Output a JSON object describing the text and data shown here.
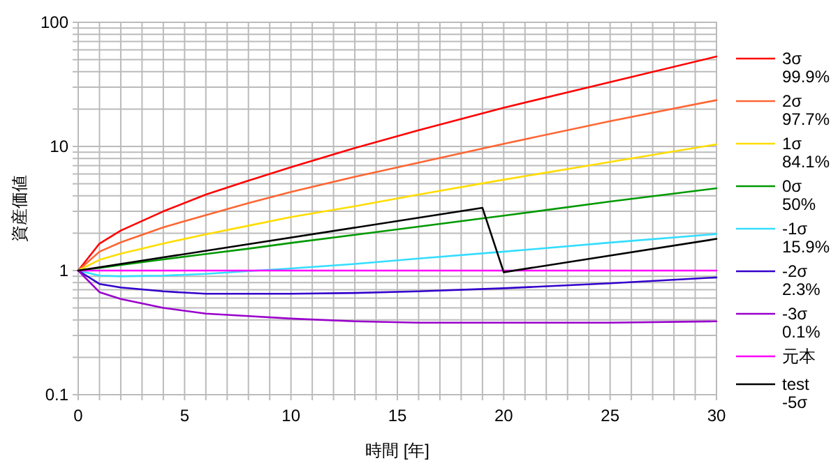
{
  "chart_data": {
    "type": "line",
    "xlabel": "時間 [年]",
    "ylabel": "資産価値",
    "log": "y",
    "grid": true,
    "legend": "right",
    "line_style": "solid",
    "marker": "none",
    "xlim": [
      0,
      30
    ],
    "ylim": [
      0.1,
      100
    ],
    "xticks": [
      0,
      {
        "value": 1,
        "label": null
      },
      {
        "value": 2,
        "label": null
      },
      {
        "value": 3,
        "label": null
      },
      {
        "value": 4,
        "label": null
      },
      5,
      {
        "value": 6,
        "label": null
      },
      {
        "value": 7,
        "label": null
      },
      {
        "value": 8,
        "label": null
      },
      {
        "value": 9,
        "label": null
      },
      10,
      {
        "value": 11,
        "label": null
      },
      {
        "value": 12,
        "label": null
      },
      {
        "value": 13,
        "label": null
      },
      {
        "value": 14,
        "label": null
      },
      15,
      {
        "value": 16,
        "label": null
      },
      {
        "value": 17,
        "label": null
      },
      {
        "value": 18,
        "label": null
      },
      {
        "value": 19,
        "label": null
      },
      20,
      {
        "value": 21,
        "label": null
      },
      {
        "value": 22,
        "label": null
      },
      {
        "value": 23,
        "label": null
      },
      {
        "value": 24,
        "label": null
      },
      25,
      {
        "value": 26,
        "label": null
      },
      {
        "value": 27,
        "label": null
      },
      {
        "value": 28,
        "label": null
      },
      {
        "value": 29,
        "label": null
      },
      30
    ],
    "yticks": [
      0.1,
      {
        "value": 0.2,
        "label": null
      },
      {
        "value": 0.3,
        "label": null
      },
      {
        "value": 0.4,
        "label": null
      },
      {
        "value": 0.5,
        "label": null
      },
      {
        "value": 0.6,
        "label": null
      },
      {
        "value": 0.7,
        "label": null
      },
      {
        "value": 0.8,
        "label": null
      },
      {
        "value": 0.9,
        "label": null
      },
      1,
      {
        "value": 2,
        "label": null
      },
      {
        "value": 3,
        "label": null
      },
      {
        "value": 4,
        "label": null
      },
      {
        "value": 5,
        "label": null
      },
      {
        "value": 6,
        "label": null
      },
      {
        "value": 7,
        "label": null
      },
      {
        "value": 8,
        "label": null
      },
      {
        "value": 9,
        "label": null
      },
      10,
      {
        "value": 20,
        "label": null
      },
      {
        "value": 30,
        "label": null
      },
      {
        "value": 40,
        "label": null
      },
      {
        "value": 50,
        "label": null
      },
      {
        "value": 60,
        "label": null
      },
      {
        "value": 70,
        "label": null
      },
      {
        "value": 80,
        "label": null
      },
      {
        "value": 90,
        "label": null
      },
      100
    ],
    "x": [
      0,
      1,
      2,
      4,
      6,
      8,
      10,
      13,
      16,
      20,
      25,
      30
    ],
    "series": [
      {
        "name": "3σ\n99.9%",
        "color": "#ff0000",
        "values": [
          1,
          1.65,
          2.1,
          3.0,
          4.1,
          5.3,
          6.8,
          9.7,
          13.5,
          20.5,
          33,
          53
        ]
      },
      {
        "name": "2σ\n97.7%",
        "color": "#ff6633",
        "values": [
          1,
          1.42,
          1.69,
          2.23,
          2.8,
          3.5,
          4.3,
          5.7,
          7.4,
          10.5,
          16,
          23.6
        ]
      },
      {
        "name": "1σ\n84.1%",
        "color": "#ffdd00",
        "values": [
          1,
          1.22,
          1.37,
          1.65,
          1.96,
          2.3,
          2.7,
          3.3,
          4.1,
          5.4,
          7.5,
          10.4
        ]
      },
      {
        "name": "0σ\n50%",
        "color": "#009900",
        "values": [
          1,
          1.05,
          1.11,
          1.23,
          1.36,
          1.5,
          1.67,
          1.94,
          2.26,
          2.77,
          3.6,
          4.6
        ]
      },
      {
        "name": "-1σ\n15.9%",
        "color": "#33ddff",
        "values": [
          1,
          0.91,
          0.9,
          0.91,
          0.94,
          0.99,
          1.04,
          1.13,
          1.25,
          1.42,
          1.68,
          1.97
        ]
      },
      {
        "name": "-2σ\n2.3%",
        "color": "#3300cc",
        "values": [
          1,
          0.78,
          0.73,
          0.68,
          0.65,
          0.65,
          0.65,
          0.66,
          0.68,
          0.72,
          0.79,
          0.88
        ]
      },
      {
        "name": "-3σ\n0.1%",
        "color": "#9900cc",
        "values": [
          1,
          0.67,
          0.59,
          0.5,
          0.45,
          0.43,
          0.41,
          0.39,
          0.38,
          0.38,
          0.38,
          0.39
        ]
      },
      {
        "name": "元本",
        "color": "#ff00ff",
        "x": [
          0,
          30
        ],
        "values": [
          1,
          1
        ]
      },
      {
        "name": "test\n-5σ",
        "color": "#000000",
        "x": [
          0,
          19,
          20,
          30
        ],
        "values": [
          1,
          3.2,
          0.97,
          1.8
        ]
      }
    ]
  }
}
